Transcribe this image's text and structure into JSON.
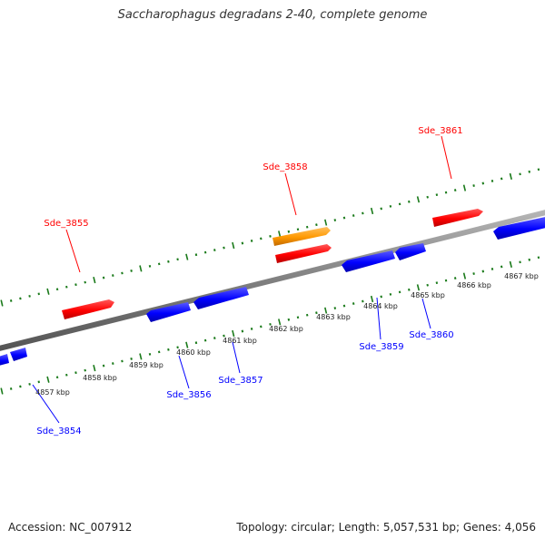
{
  "title": "Saccharophagus degradans 2-40, complete genome",
  "footer": {
    "accession": "Accession: NC_007912",
    "stats": "Topology: circular; Length: 5,057,531 bp; Genes: 4,056"
  },
  "colors": {
    "forward_gene": "#ff0000",
    "reverse_gene": "#0000ff",
    "highlight_gene": "#ff9900",
    "backbone": "#808080",
    "ticks": "#1a7a1a",
    "label_text": "#222222"
  },
  "scale": {
    "unit": "kbp",
    "labels": [
      "4857 kbp",
      "4858 kbp",
      "4859 kbp",
      "4860 kbp",
      "4861 kbp",
      "4862 kbp",
      "4863 kbp",
      "4864 kbp",
      "4865 kbp",
      "4866 kbp",
      "4867 kbp"
    ]
  },
  "genes": {
    "forward": [
      {
        "label": "Sde_3855",
        "color": "#ff0000"
      },
      {
        "label": "Sde_3858",
        "color": "#ff9900"
      },
      {
        "label": "Sde_3861",
        "color": "#ff0000"
      }
    ],
    "reverse": [
      {
        "label": "Sde_3854",
        "color": "#0000ff"
      },
      {
        "label": "Sde_3856",
        "color": "#0000ff"
      },
      {
        "label": "Sde_3857",
        "color": "#0000ff"
      },
      {
        "label": "Sde_3859",
        "color": "#0000ff"
      },
      {
        "label": "Sde_3860",
        "color": "#0000ff"
      }
    ]
  }
}
